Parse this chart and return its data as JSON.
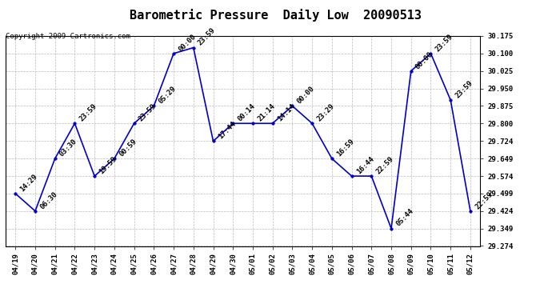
{
  "title": "Barometric Pressure  Daily Low  20090513",
  "copyright": "Copyright 2009 Cartronics.com",
  "x_labels": [
    "04/19",
    "04/20",
    "04/21",
    "04/22",
    "04/23",
    "04/24",
    "04/25",
    "04/26",
    "04/27",
    "04/28",
    "04/29",
    "04/30",
    "05/01",
    "05/02",
    "05/03",
    "05/04",
    "05/05",
    "05/06",
    "05/07",
    "05/08",
    "05/09",
    "05/10",
    "05/11",
    "05/12"
  ],
  "y_values": [
    29.499,
    29.424,
    29.649,
    29.8,
    29.574,
    29.649,
    29.8,
    29.875,
    30.1,
    30.125,
    29.724,
    29.8,
    29.8,
    29.8,
    29.875,
    29.8,
    29.649,
    29.574,
    29.574,
    29.349,
    30.025,
    30.1,
    29.9,
    29.424
  ],
  "point_labels": [
    "14:29",
    "06:30",
    "03:30",
    "23:59",
    "19:59",
    "00:59",
    "23:59",
    "05:29",
    "00:00",
    "23:59",
    "17:44",
    "00:14",
    "21:14",
    "14:14",
    "00:00",
    "23:29",
    "16:59",
    "16:44",
    "22:59",
    "05:44",
    "00:00",
    "23:59",
    "23:59",
    "22:59"
  ],
  "ylim": [
    29.274,
    30.175
  ],
  "y_ticks": [
    29.274,
    29.349,
    29.424,
    29.499,
    29.574,
    29.649,
    29.724,
    29.8,
    29.875,
    29.95,
    30.025,
    30.1,
    30.175
  ],
  "line_color": "#0000cc",
  "marker_color": "#0000cc",
  "bg_color": "#ffffff",
  "grid_color": "#bbbbbb",
  "title_fontsize": 11,
  "point_label_fontsize": 6.5,
  "axis_tick_fontsize": 6.5,
  "copyright_fontsize": 6.5
}
